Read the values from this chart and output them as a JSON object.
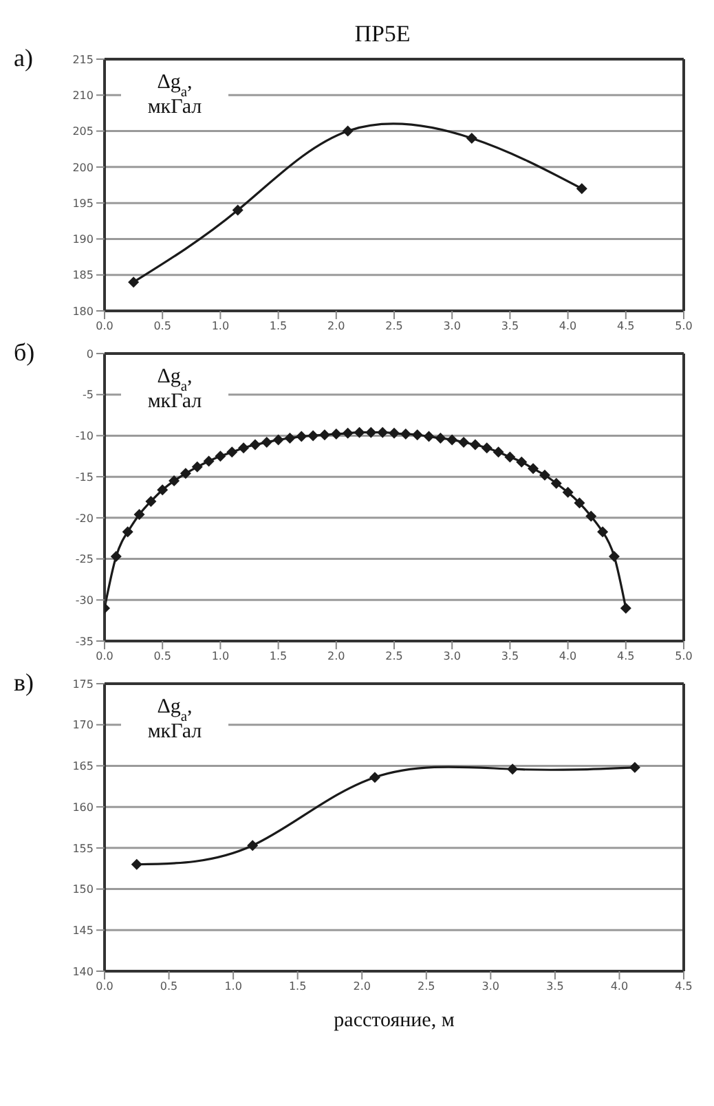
{
  "chart_data": [
    {
      "type": "line",
      "title": "ПР5E",
      "annotations": [
        "а)"
      ],
      "ylabel": "Δg$_{a}$, мкГал",
      "x": [
        0.25,
        1.15,
        2.1,
        3.17,
        4.12
      ],
      "series": [
        {
          "color": "#1a1a1a",
          "values": [
            184,
            194,
            205,
            204,
            197
          ]
        }
      ],
      "xlim": [
        0,
        5
      ],
      "xticks": [
        {
          "value": 0,
          "label": "0.0"
        },
        {
          "value": 0.5,
          "label": "0.5"
        },
        {
          "value": 1,
          "label": "1.0"
        },
        {
          "value": 1.5,
          "label": "1.5"
        },
        {
          "value": 2,
          "label": "2.0"
        },
        {
          "value": 2.5,
          "label": "2.5"
        },
        {
          "value": 3,
          "label": "3.0"
        },
        {
          "value": 3.5,
          "label": "3.5"
        },
        {
          "value": 4,
          "label": "4.0"
        },
        {
          "value": 4.5,
          "label": "4.5"
        },
        {
          "value": 5,
          "label": "5.0"
        }
      ],
      "ylim": [
        180,
        215
      ],
      "yticks": [
        180,
        185,
        190,
        195,
        200,
        205,
        210,
        215
      ],
      "grid": "y",
      "marker": "diamond",
      "legend": false
    },
    {
      "type": "line",
      "annotations": [
        "б)"
      ],
      "ylabel": "Δg$_{a}$, мкГал",
      "x": [
        0,
        0.1,
        0.2,
        0.3,
        0.4,
        0.5,
        0.6,
        0.7,
        0.8,
        0.9,
        1,
        1.1,
        1.2,
        1.3,
        1.4,
        1.5,
        1.6,
        1.7,
        1.8,
        1.9,
        2,
        2.1,
        2.2,
        2.3,
        2.4,
        2.5,
        2.6,
        2.7,
        2.8,
        2.9,
        3,
        3.1,
        3.2,
        3.3,
        3.4,
        3.5,
        3.6,
        3.7,
        3.8,
        3.9,
        4,
        4.1,
        4.2,
        4.3,
        4.4,
        4.5
      ],
      "series": [
        {
          "color": "#1a1a1a",
          "values": [
            -31,
            -24.7,
            -21.7,
            -19.6,
            -18,
            -16.6,
            -15.5,
            -14.6,
            -13.8,
            -13.1,
            -12.5,
            -12,
            -11.5,
            -11.1,
            -10.8,
            -10.5,
            -10.3,
            -10.1,
            -10,
            -9.9,
            -9.8,
            -9.7,
            -9.6,
            -9.6,
            -9.6,
            -9.7,
            -9.8,
            -9.9,
            -10.1,
            -10.3,
            -10.5,
            -10.8,
            -11.1,
            -11.5,
            -12,
            -12.6,
            -13.2,
            -14,
            -14.8,
            -15.8,
            -16.9,
            -18.2,
            -19.8,
            -21.7,
            -24.7,
            -31
          ]
        }
      ],
      "xlim": [
        0,
        5
      ],
      "xticks": [
        {
          "value": 0,
          "label": "0.0"
        },
        {
          "value": 0.5,
          "label": "0.5"
        },
        {
          "value": 1,
          "label": "1.0"
        },
        {
          "value": 1.5,
          "label": "1.5"
        },
        {
          "value": 2,
          "label": "2.0"
        },
        {
          "value": 2.5,
          "label": "2.5"
        },
        {
          "value": 3,
          "label": "3.0"
        },
        {
          "value": 3.5,
          "label": "3.5"
        },
        {
          "value": 4,
          "label": "4.0"
        },
        {
          "value": 4.5,
          "label": "4.5"
        },
        {
          "value": 5,
          "label": "5.0"
        }
      ],
      "ylim": [
        -35,
        0
      ],
      "yticks": [
        -35,
        -30,
        -25,
        -20,
        -15,
        -10,
        -5,
        0
      ],
      "grid": "y",
      "marker": "diamond",
      "legend": false
    },
    {
      "type": "line",
      "annotations": [
        "в)"
      ],
      "ylabel": "Δg$_{a}$, мкГал",
      "xlabel": "расстояние, м",
      "x": [
        0.25,
        1.15,
        2.1,
        3.17,
        4.12
      ],
      "series": [
        {
          "color": "#1a1a1a",
          "values": [
            153,
            155.3,
            163.6,
            164.6,
            164.8
          ]
        }
      ],
      "xlim": [
        0,
        4.5
      ],
      "xticks": [
        {
          "value": 0,
          "label": "0.0"
        },
        {
          "value": 0.5,
          "label": "0.5"
        },
        {
          "value": 1,
          "label": "1.0"
        },
        {
          "value": 1.5,
          "label": "1.5"
        },
        {
          "value": 2,
          "label": "2.0"
        },
        {
          "value": 2.5,
          "label": "2.5"
        },
        {
          "value": 3,
          "label": "3.0"
        },
        {
          "value": 3.5,
          "label": "3.5"
        },
        {
          "value": 4,
          "label": "4.0"
        },
        {
          "value": 4.5,
          "label": "4.5"
        }
      ],
      "ylim": [
        140,
        175
      ],
      "yticks": [
        140,
        145,
        150,
        155,
        160,
        165,
        170,
        175
      ],
      "grid": "y",
      "marker": "diamond",
      "legend": false
    }
  ]
}
